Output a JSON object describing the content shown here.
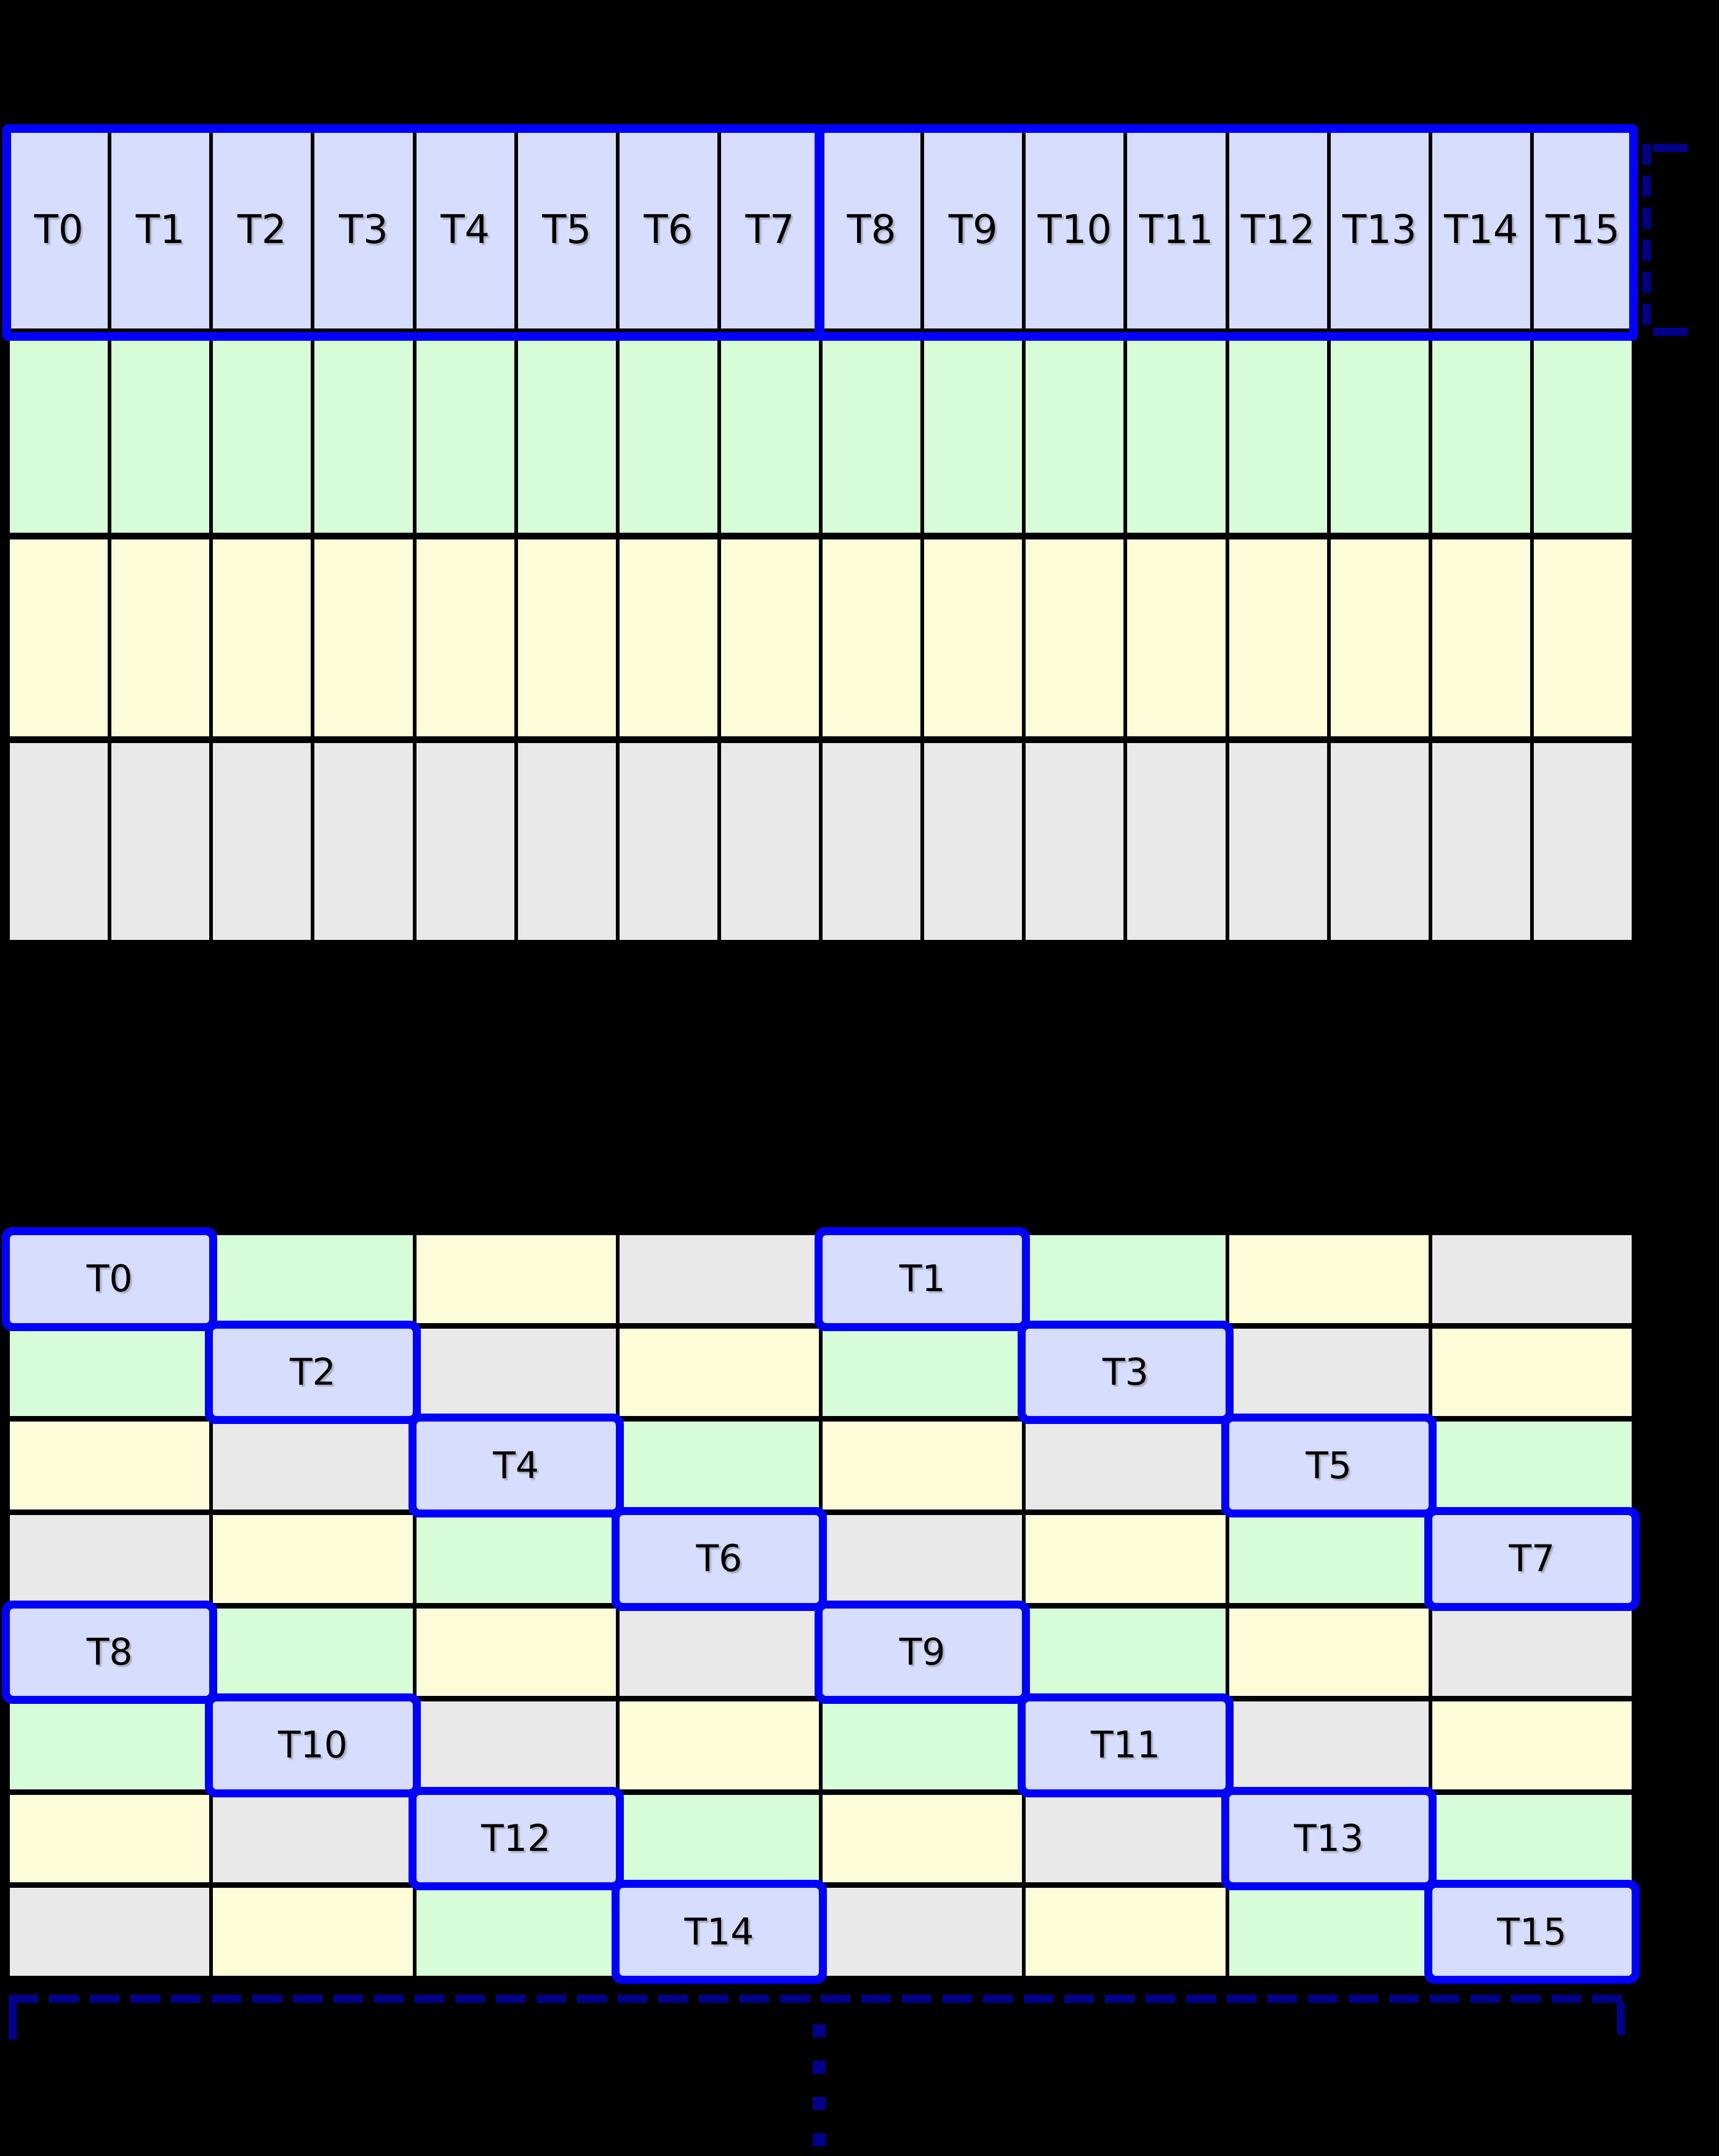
{
  "colors": {
    "background": "#000000",
    "cell_blue": "#d7ddfd",
    "cell_green": "#d6fcd8",
    "cell_yellow": "#fcfcd9",
    "cell_gray": "#e9e9e9",
    "highlight_blue": "#0000ff",
    "bracket_navy": "#00008b",
    "text": "#000000"
  },
  "upper_grid": {
    "columns": 16,
    "rows": [
      {
        "color": "blue",
        "labels": [
          "T0",
          "T1",
          "T2",
          "T3",
          "T4",
          "T5",
          "T6",
          "T7",
          "T8",
          "T9",
          "T10",
          "T11",
          "T12",
          "T13",
          "T14",
          "T15"
        ]
      },
      {
        "color": "green"
      },
      {
        "color": "yellow"
      },
      {
        "color": "gray"
      }
    ],
    "highlight_groups": [
      {
        "first_thread": "T0",
        "last_thread": "T7"
      },
      {
        "first_thread": "T8",
        "last_thread": "T15"
      }
    ]
  },
  "lower_grid": {
    "columns": 8,
    "rows": [
      [
        {
          "color": "blue",
          "label": "T0",
          "highlight": true
        },
        {
          "color": "green"
        },
        {
          "color": "yellow"
        },
        {
          "color": "gray"
        },
        {
          "color": "blue",
          "label": "T1",
          "highlight": true
        },
        {
          "color": "green"
        },
        {
          "color": "yellow"
        },
        {
          "color": "gray"
        }
      ],
      [
        {
          "color": "green"
        },
        {
          "color": "blue",
          "label": "T2",
          "highlight": true
        },
        {
          "color": "gray"
        },
        {
          "color": "yellow"
        },
        {
          "color": "green"
        },
        {
          "color": "blue",
          "label": "T3",
          "highlight": true
        },
        {
          "color": "gray"
        },
        {
          "color": "yellow"
        }
      ],
      [
        {
          "color": "yellow"
        },
        {
          "color": "gray"
        },
        {
          "color": "blue",
          "label": "T4",
          "highlight": true
        },
        {
          "color": "green"
        },
        {
          "color": "yellow"
        },
        {
          "color": "gray"
        },
        {
          "color": "blue",
          "label": "T5",
          "highlight": true
        },
        {
          "color": "green"
        }
      ],
      [
        {
          "color": "gray"
        },
        {
          "color": "yellow"
        },
        {
          "color": "green"
        },
        {
          "color": "blue",
          "label": "T6",
          "highlight": true
        },
        {
          "color": "gray"
        },
        {
          "color": "yellow"
        },
        {
          "color": "green"
        },
        {
          "color": "blue",
          "label": "T7",
          "highlight": true
        }
      ],
      [
        {
          "color": "blue",
          "label": "T8",
          "highlight": true
        },
        {
          "color": "green"
        },
        {
          "color": "yellow"
        },
        {
          "color": "gray"
        },
        {
          "color": "blue",
          "label": "T9",
          "highlight": true
        },
        {
          "color": "green"
        },
        {
          "color": "yellow"
        },
        {
          "color": "gray"
        }
      ],
      [
        {
          "color": "green"
        },
        {
          "color": "blue",
          "label": "T10",
          "highlight": true
        },
        {
          "color": "gray"
        },
        {
          "color": "yellow"
        },
        {
          "color": "green"
        },
        {
          "color": "blue",
          "label": "T11",
          "highlight": true
        },
        {
          "color": "gray"
        },
        {
          "color": "yellow"
        }
      ],
      [
        {
          "color": "yellow"
        },
        {
          "color": "gray"
        },
        {
          "color": "blue",
          "label": "T12",
          "highlight": true
        },
        {
          "color": "green"
        },
        {
          "color": "yellow"
        },
        {
          "color": "gray"
        },
        {
          "color": "blue",
          "label": "T13",
          "highlight": true
        },
        {
          "color": "green"
        }
      ],
      [
        {
          "color": "gray"
        },
        {
          "color": "yellow"
        },
        {
          "color": "green"
        },
        {
          "color": "blue",
          "label": "T14",
          "highlight": true
        },
        {
          "color": "gray"
        },
        {
          "color": "yellow"
        },
        {
          "color": "green"
        },
        {
          "color": "blue",
          "label": "T15",
          "highlight": true
        }
      ]
    ]
  },
  "ellipsis_dot_count": 4
}
